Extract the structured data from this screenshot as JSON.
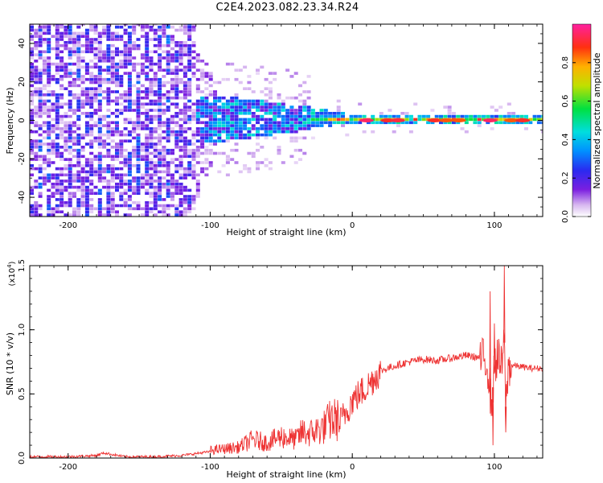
{
  "title": "C2E4.2023.082.23.34.R24",
  "chart_data": [
    {
      "type": "heatmap",
      "title": "C2E4.2023.082.23.34.R24",
      "xlabel": "Height of straight line (km)",
      "ylabel": "Frequency (Hz)",
      "xlim": [
        -227,
        134
      ],
      "ylim": [
        -50,
        50
      ],
      "xticks": [
        -200,
        -100,
        0,
        100
      ],
      "yticks": [
        -40,
        -20,
        0,
        20,
        40
      ],
      "colorbar": {
        "label": "Normalized spectral amplitude",
        "range": [
          0,
          1
        ],
        "ticks": [
          "0.0",
          "0.2",
          "0.4",
          "0.6",
          "0.8"
        ]
      },
      "regions": [
        {
          "x_range": [
            -227,
            -110
          ],
          "freq_range": [
            -50,
            50
          ],
          "amplitude": [
            0.03,
            0.2
          ],
          "note": "broadband low-amplitude noise"
        },
        {
          "x_range": [
            -120,
            -30
          ],
          "freq_range": [
            -12,
            10
          ],
          "amplitude": [
            0.1,
            0.45
          ],
          "note": "energy concentrating near 0 Hz"
        },
        {
          "x_range": [
            -30,
            134
          ],
          "freq_range": [
            -2,
            2
          ],
          "amplitude": [
            0.4,
            1.0
          ],
          "note": "narrow band at 0 Hz with peaks"
        }
      ]
    },
    {
      "type": "line",
      "xlabel": "Height of straight line (km)",
      "ylabel": "SNR (10 * v/v)",
      "yscale_label": "(x10",
      "yscale_exp": "4",
      "xlim": [
        -227,
        134
      ],
      "ylim": [
        0,
        1.5
      ],
      "xticks": [
        -200,
        -100,
        0,
        100
      ],
      "yticks": [
        "0.0",
        "0.5",
        "1.0",
        "1.5"
      ],
      "color": "#ee3333",
      "x": [
        -227,
        -200,
        -180,
        -175,
        -160,
        -140,
        -120,
        -100,
        -90,
        -80,
        -70,
        -60,
        -50,
        -40,
        -35,
        -30,
        -25,
        -20,
        -15,
        -10,
        -5,
        0,
        5,
        10,
        15,
        20,
        25,
        30,
        40,
        50,
        60,
        70,
        80,
        90,
        95,
        98,
        100,
        102,
        105,
        107,
        108,
        110,
        115,
        120,
        125,
        134
      ],
      "y": [
        0.01,
        0.01,
        0.02,
        0.04,
        0.01,
        0.01,
        0.02,
        0.05,
        0.06,
        0.07,
        0.12,
        0.1,
        0.14,
        0.12,
        0.17,
        0.16,
        0.18,
        0.2,
        0.25,
        0.25,
        0.35,
        0.45,
        0.5,
        0.55,
        0.62,
        0.68,
        0.7,
        0.72,
        0.75,
        0.77,
        0.76,
        0.78,
        0.8,
        0.78,
        0.75,
        0.4,
        0.7,
        0.8,
        0.7,
        0.9,
        0.4,
        0.72,
        0.72,
        0.71,
        0.7,
        0.7
      ],
      "spikes": [
        {
          "x": 97,
          "y": 1.3
        },
        {
          "x": 99,
          "y": 0.1
        },
        {
          "x": 100,
          "y": 1.05
        },
        {
          "x": 107,
          "y": 1.5
        },
        {
          "x": 108,
          "y": 0.2
        }
      ]
    }
  ]
}
